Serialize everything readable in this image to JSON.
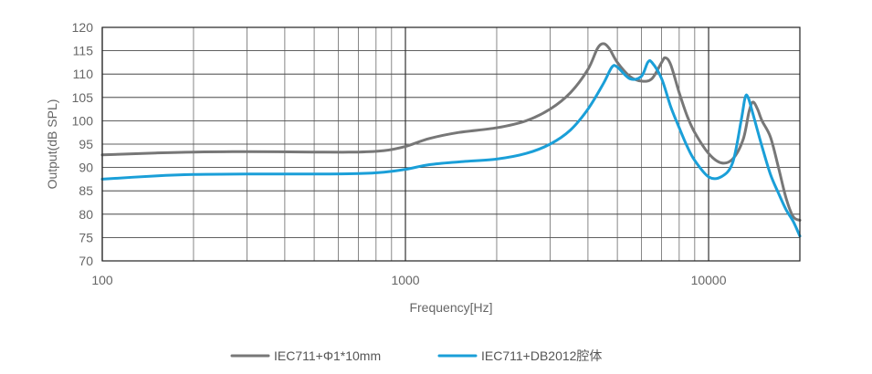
{
  "chart_data": {
    "type": "line",
    "xscale": "log",
    "xlim": [
      100,
      20000
    ],
    "ylim": [
      70,
      120
    ],
    "xlabel": "Frequency[Hz]",
    "ylabel": "Output(dB SPL)",
    "x_ticks": [
      100,
      1000,
      10000
    ],
    "x_tick_labels": [
      "100",
      "1000",
      "10000"
    ],
    "y_ticks": [
      70,
      75,
      80,
      85,
      90,
      95,
      100,
      105,
      110,
      115,
      120
    ],
    "y_tick_labels": [
      "70",
      "75",
      "80",
      "85",
      "90",
      "95",
      "100",
      "105",
      "110",
      "115",
      "120"
    ],
    "grid": true,
    "legend_position": "bottom-center",
    "series": [
      {
        "name": "IEC711+Φ1*10mm",
        "color": "#777777",
        "points": [
          [
            100,
            92.7
          ],
          [
            150,
            93.1
          ],
          [
            200,
            93.3
          ],
          [
            300,
            93.4
          ],
          [
            500,
            93.3
          ],
          [
            700,
            93.3
          ],
          [
            850,
            93.6
          ],
          [
            1000,
            94.5
          ],
          [
            1200,
            96.2
          ],
          [
            1500,
            97.5
          ],
          [
            2000,
            98.5
          ],
          [
            2500,
            100.0
          ],
          [
            3000,
            102.5
          ],
          [
            3500,
            106.0
          ],
          [
            4000,
            111.0
          ],
          [
            4300,
            115.5
          ],
          [
            4500,
            116.5
          ],
          [
            4700,
            115.5
          ],
          [
            5000,
            112.5
          ],
          [
            5500,
            109.5
          ],
          [
            6000,
            108.5
          ],
          [
            6500,
            109.0
          ],
          [
            7000,
            112.5
          ],
          [
            7200,
            113.5
          ],
          [
            7500,
            112.0
          ],
          [
            8000,
            106.0
          ],
          [
            8500,
            101.0
          ],
          [
            9000,
            97.5
          ],
          [
            10000,
            93.0
          ],
          [
            11000,
            91.0
          ],
          [
            12000,
            91.8
          ],
          [
            13000,
            96.0
          ],
          [
            13600,
            102.0
          ],
          [
            14000,
            104.0
          ],
          [
            14500,
            102.5
          ],
          [
            15000,
            100.0
          ],
          [
            16000,
            96.5
          ],
          [
            17000,
            90.0
          ],
          [
            18000,
            83.5
          ],
          [
            19000,
            79.5
          ],
          [
            20000,
            78.7
          ]
        ]
      },
      {
        "name": "IEC711+DB2012腔体",
        "color": "#1a9fd8",
        "points": [
          [
            100,
            87.5
          ],
          [
            150,
            88.2
          ],
          [
            200,
            88.5
          ],
          [
            300,
            88.6
          ],
          [
            500,
            88.6
          ],
          [
            700,
            88.7
          ],
          [
            850,
            89.0
          ],
          [
            1000,
            89.6
          ],
          [
            1200,
            90.6
          ],
          [
            1500,
            91.2
          ],
          [
            2000,
            91.8
          ],
          [
            2500,
            93.0
          ],
          [
            3000,
            95.0
          ],
          [
            3500,
            98.0
          ],
          [
            4000,
            102.5
          ],
          [
            4500,
            108.0
          ],
          [
            4800,
            111.5
          ],
          [
            5000,
            111.5
          ],
          [
            5500,
            109.0
          ],
          [
            6000,
            109.5
          ],
          [
            6300,
            112.5
          ],
          [
            6500,
            112.5
          ],
          [
            7000,
            109.0
          ],
          [
            7500,
            103.0
          ],
          [
            8000,
            98.5
          ],
          [
            8500,
            94.5
          ],
          [
            9000,
            91.5
          ],
          [
            10000,
            88.0
          ],
          [
            11000,
            88.0
          ],
          [
            12000,
            91.0
          ],
          [
            12800,
            100.0
          ],
          [
            13200,
            105.0
          ],
          [
            13500,
            105.0
          ],
          [
            14000,
            101.5
          ],
          [
            15000,
            94.5
          ],
          [
            16000,
            88.5
          ],
          [
            17000,
            84.5
          ],
          [
            18000,
            81.0
          ],
          [
            19000,
            78.5
          ],
          [
            20000,
            75.3
          ]
        ]
      }
    ]
  }
}
